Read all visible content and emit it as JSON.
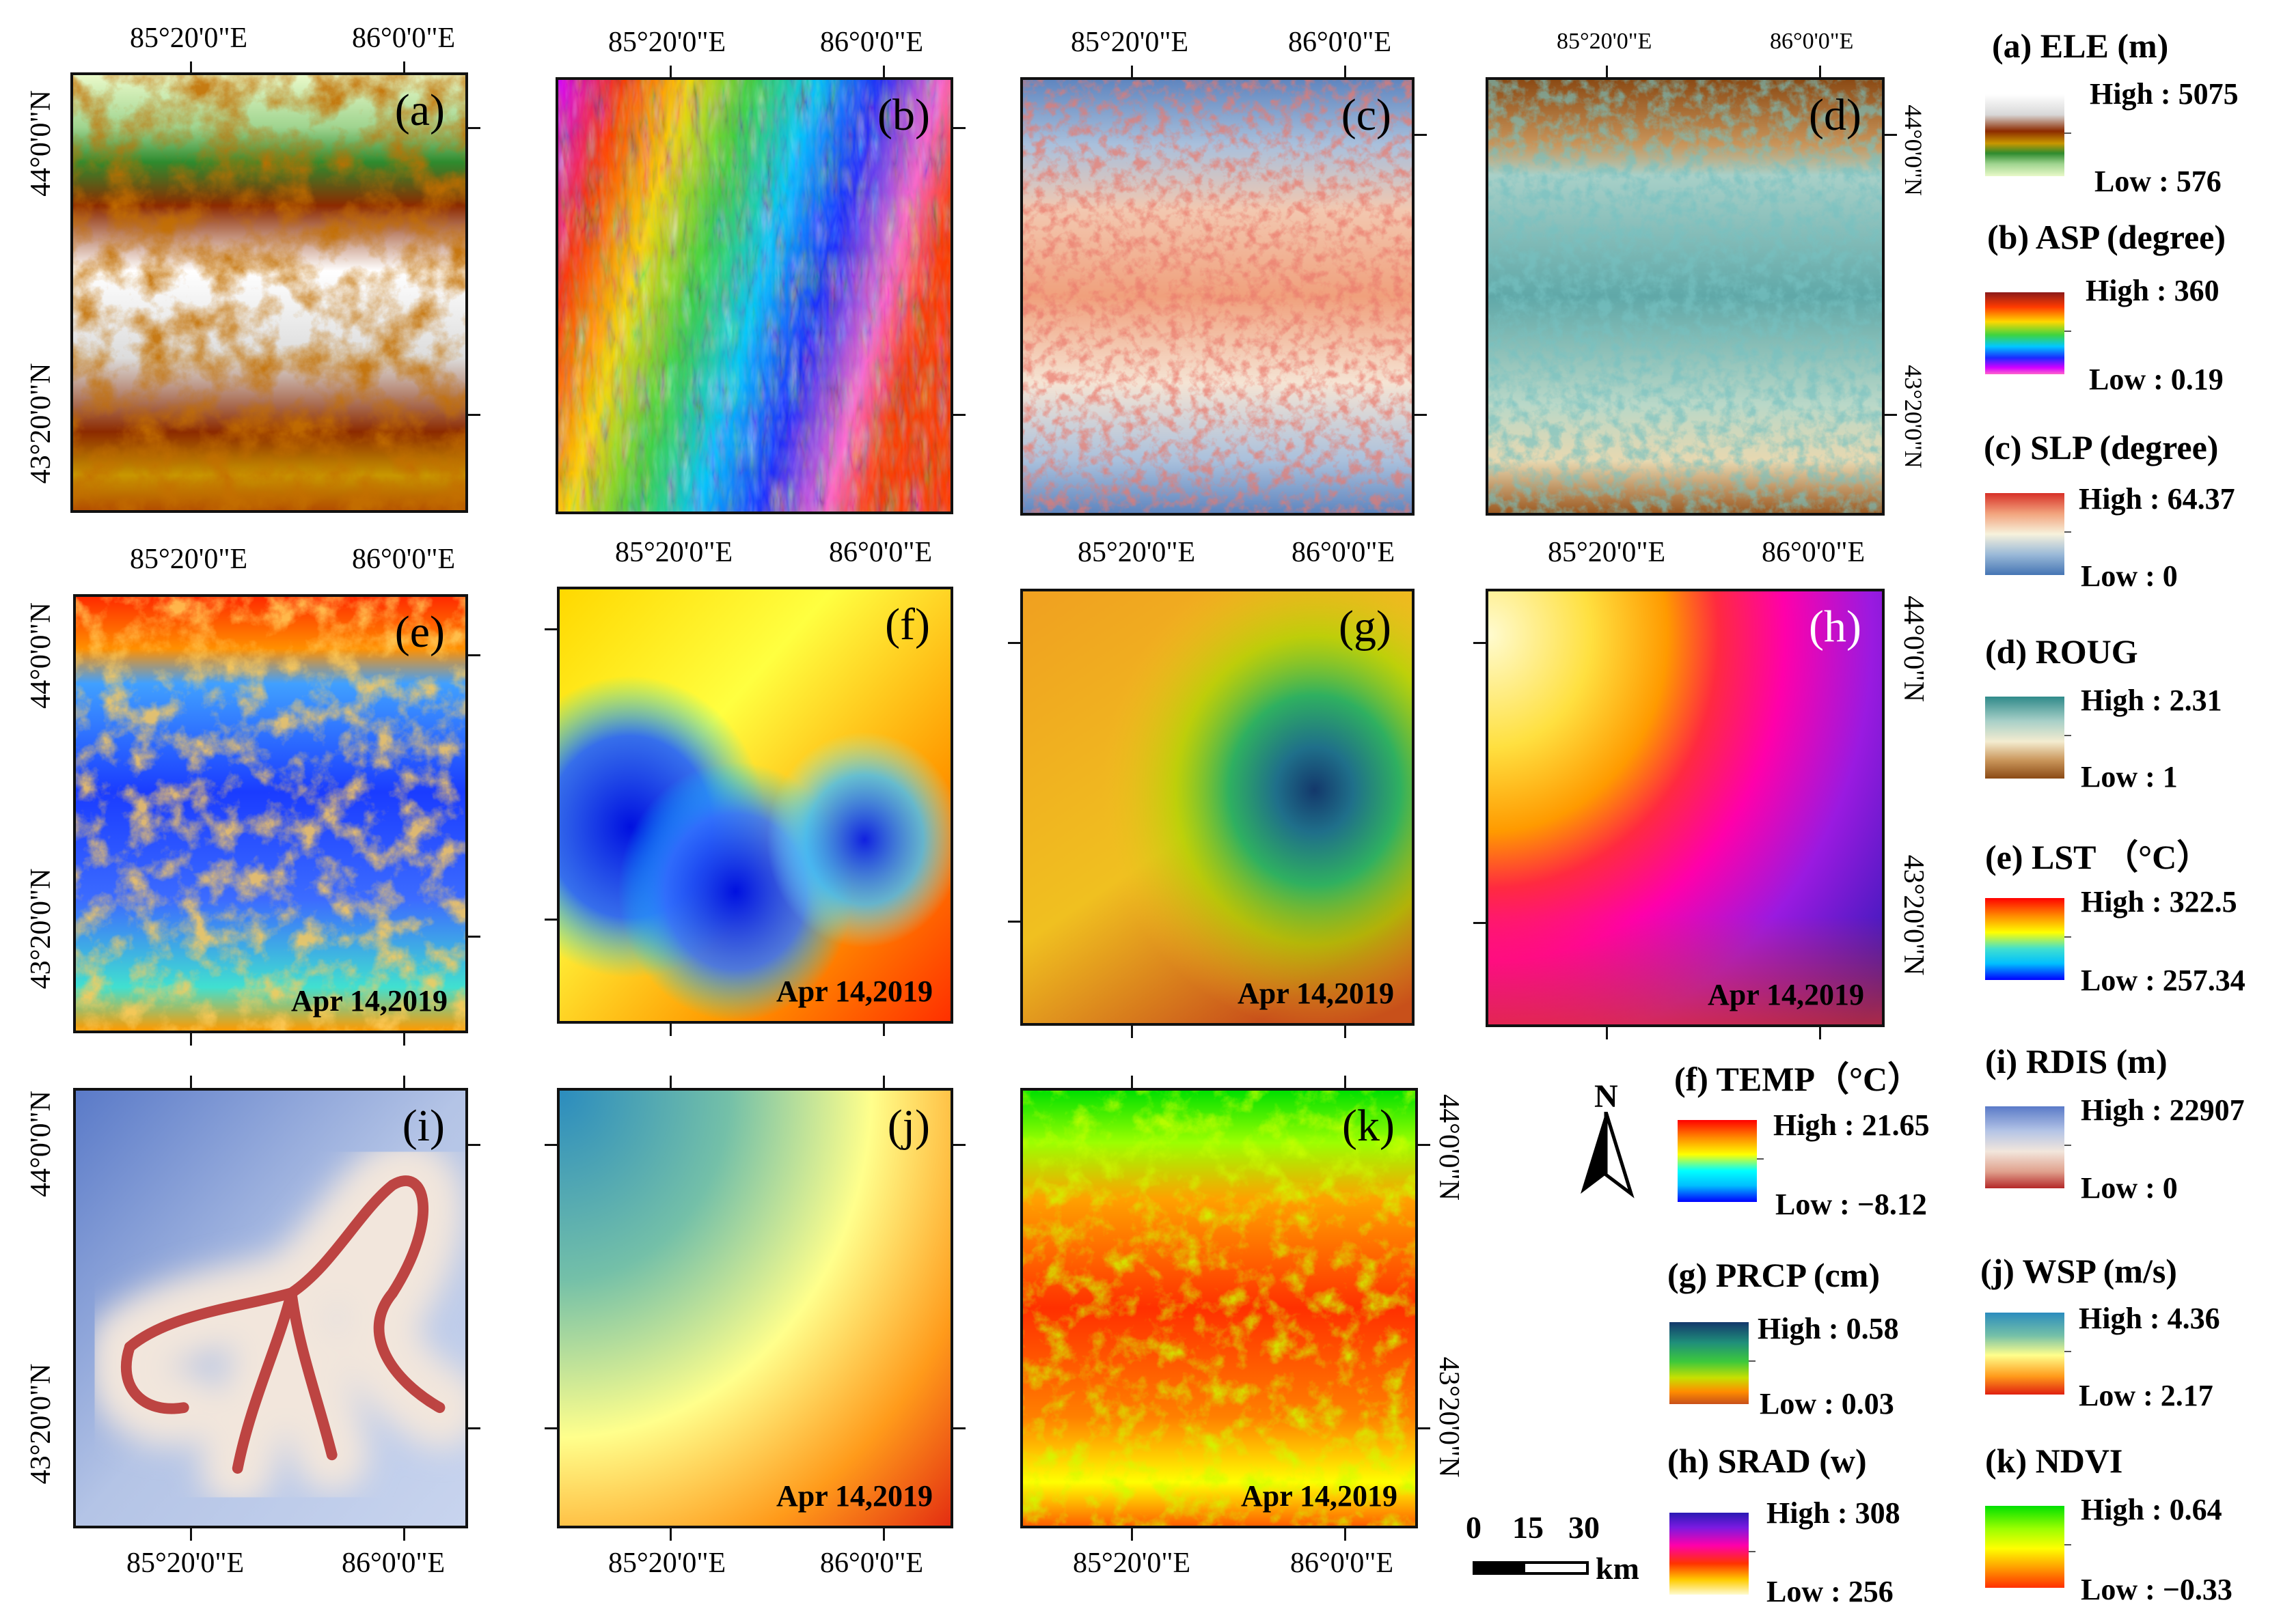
{
  "figure": {
    "coords": {
      "lon_1": "85°20'0\"E",
      "lon_2": "86°0'0\"E",
      "lat_1": "44°0'0\"N",
      "lat_2": "43°20'0\"N"
    },
    "date": "Apr 14,2019",
    "panels": [
      {
        "id": "a",
        "label": "(a)",
        "title": "(a) ELE (m)",
        "high": "High : 5075",
        "low": "Low : 576",
        "has_date": false
      },
      {
        "id": "b",
        "label": "(b)",
        "title": "(b) ASP (degree)",
        "high": "High : 360",
        "low": "Low : 0.19",
        "has_date": false
      },
      {
        "id": "c",
        "label": "(c)",
        "title": "(c) SLP (degree)",
        "high": "High : 64.37",
        "low": "Low : 0",
        "has_date": false
      },
      {
        "id": "d",
        "label": "(d)",
        "title": "(d) ROUG",
        "high": "High : 2.31",
        "low": "Low : 1",
        "has_date": false
      },
      {
        "id": "e",
        "label": "(e)",
        "title": "(e) LST （°C）",
        "high": "High : 322.5",
        "low": "Low : 257.34",
        "has_date": true
      },
      {
        "id": "f",
        "label": "(f)",
        "title": "(f) TEMP（°C）",
        "high": "High : 21.65",
        "low": "Low : −8.12",
        "has_date": true
      },
      {
        "id": "g",
        "label": "(g)",
        "title": "(g) PRCP (cm)",
        "high": "High : 0.58",
        "low": "Low : 0.03",
        "has_date": true
      },
      {
        "id": "h",
        "label": "(h)",
        "title": "(h) SRAD (w)",
        "high": "High : 308",
        "low": "Low : 256",
        "has_date": true
      },
      {
        "id": "i",
        "label": "(i)",
        "title": "(i) RDIS (m)",
        "high": "High : 22907",
        "low": "Low : 0",
        "has_date": false
      },
      {
        "id": "j",
        "label": "(j)",
        "title": "(j) WSP (m/s)",
        "high": "High : 4.36",
        "low": "Low : 2.17",
        "has_date": true
      },
      {
        "id": "k",
        "label": "(k)",
        "title": "(k) NDVI",
        "high": "High : 0.64",
        "low": "Low : −0.33",
        "has_date": true
      }
    ],
    "north_arrow": {
      "label": "N",
      "icon": "north-arrow-icon"
    },
    "scale_bar": {
      "ticks": [
        "0",
        "15",
        "30"
      ],
      "unit": "km"
    },
    "colors": {
      "a": [
        "#ffffff",
        "#d8d8d8",
        "#8c2a00",
        "#b34d00",
        "#c89700",
        "#2e8b2e",
        "#9fd48f",
        "#e9f9c9"
      ],
      "b": [
        "#8b1a1a",
        "#ff3b00",
        "#ffd800",
        "#3fd43f",
        "#00c8ff",
        "#1a2bff",
        "#d300ff",
        "#ff66cc"
      ],
      "c": [
        "#d73027",
        "#f2a37d",
        "#f7f2dc",
        "#9ab9d8",
        "#4575b4"
      ],
      "d": [
        "#2f8a8a",
        "#a8d0c8",
        "#f4ecd0",
        "#c9955a",
        "#8b4a14"
      ],
      "e": [
        "#ff0000",
        "#ff8c00",
        "#ffff00",
        "#40e0d0",
        "#00bfff",
        "#0000ff"
      ],
      "f": [
        "#ff0000",
        "#ff8c00",
        "#ffff00",
        "#00ffff",
        "#00bfff",
        "#0000ff"
      ],
      "g": [
        "#13386b",
        "#1f8f7a",
        "#3cc83c",
        "#c8e000",
        "#ff8c00",
        "#c8501a"
      ],
      "h": [
        "#2a1ab4",
        "#7a1ae0",
        "#ff00aa",
        "#ff3300",
        "#ffcc00",
        "#fffbd0"
      ],
      "i": [
        "#5a7ac8",
        "#b4c4e6",
        "#f2e6dc",
        "#e0a08c",
        "#b42828"
      ],
      "j": [
        "#2b8cbe",
        "#74c0a8",
        "#ffff8c",
        "#ff9a1a",
        "#e02010"
      ],
      "k": [
        "#00e000",
        "#9cff00",
        "#ffff00",
        "#ffa000",
        "#ff3000"
      ]
    }
  }
}
